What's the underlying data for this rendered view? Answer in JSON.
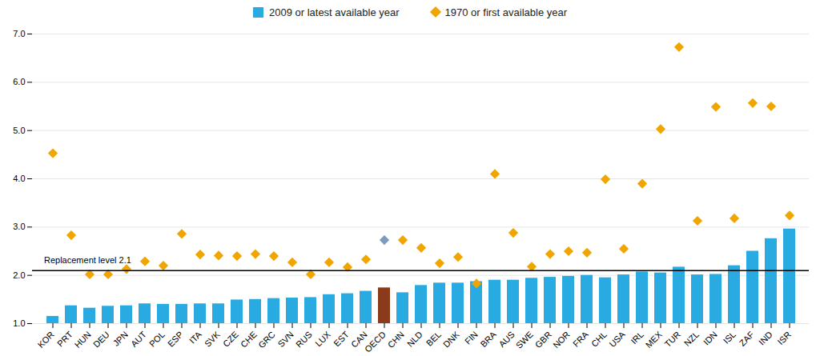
{
  "chart_data": {
    "type": "bar",
    "categories": [
      "KOR",
      "PRT",
      "HUN",
      "DEU",
      "JPN",
      "AUT",
      "POL",
      "ESP",
      "ITA",
      "SVK",
      "CZE",
      "CHE",
      "GRC",
      "SVN",
      "RUS",
      "LUX",
      "EST",
      "CAN",
      "OECD",
      "CHN",
      "NLD",
      "BEL",
      "DNK",
      "FIN",
      "BRA",
      "AUS",
      "SWE",
      "GBR",
      "NOR",
      "FRA",
      "CHL",
      "USA",
      "IRL",
      "MEX",
      "TUR",
      "NZL",
      "IDN",
      "ISL",
      "ZAF",
      "IND",
      "ISR"
    ],
    "series": [
      {
        "name": "2009 or latest available year",
        "type": "bar",
        "color": "#29ABE2",
        "colors": [
          "#29ABE2",
          "#29ABE2",
          "#29ABE2",
          "#29ABE2",
          "#29ABE2",
          "#29ABE2",
          "#29ABE2",
          "#29ABE2",
          "#29ABE2",
          "#29ABE2",
          "#29ABE2",
          "#29ABE2",
          "#29ABE2",
          "#29ABE2",
          "#29ABE2",
          "#29ABE2",
          "#29ABE2",
          "#29ABE2",
          "#8B3A1A",
          "#29ABE2",
          "#29ABE2",
          "#29ABE2",
          "#29ABE2",
          "#29ABE2",
          "#29ABE2",
          "#29ABE2",
          "#29ABE2",
          "#29ABE2",
          "#29ABE2",
          "#29ABE2",
          "#29ABE2",
          "#29ABE2",
          "#29ABE2",
          "#29ABE2",
          "#29ABE2",
          "#29ABE2",
          "#29ABE2",
          "#29ABE2",
          "#29ABE2",
          "#29ABE2",
          "#29ABE2"
        ],
        "values": [
          1.15,
          1.37,
          1.32,
          1.36,
          1.37,
          1.41,
          1.4,
          1.4,
          1.41,
          1.41,
          1.49,
          1.5,
          1.52,
          1.53,
          1.54,
          1.6,
          1.62,
          1.67,
          1.74,
          1.64,
          1.79,
          1.84,
          1.84,
          1.87,
          1.9,
          1.9,
          1.94,
          1.96,
          1.98,
          2.0,
          1.95,
          2.01,
          2.07,
          2.05,
          2.17,
          2.01,
          2.02,
          2.2,
          2.5,
          2.76,
          2.96
        ]
      },
      {
        "name": "1970 or first available year",
        "type": "scatter",
        "marker": "diamond",
        "color": "#F0A500",
        "colors": [
          "#F0A500",
          "#F0A500",
          "#F0A500",
          "#F0A500",
          "#F0A500",
          "#F0A500",
          "#F0A500",
          "#F0A500",
          "#F0A500",
          "#F0A500",
          "#F0A500",
          "#F0A500",
          "#F0A500",
          "#F0A500",
          "#F0A500",
          "#F0A500",
          "#F0A500",
          "#F0A500",
          "#7B9BBF",
          "#F0A500",
          "#F0A500",
          "#F0A500",
          "#F0A500",
          "#F0A500",
          "#F0A500",
          "#F0A500",
          "#F0A500",
          "#F0A500",
          "#F0A500",
          "#F0A500",
          "#F0A500",
          "#F0A500",
          "#F0A500",
          "#F0A500",
          "#F0A500",
          "#F0A500",
          "#F0A500",
          "#F0A500",
          "#F0A500",
          "#F0A500",
          "#F0A500"
        ],
        "values": [
          4.53,
          2.83,
          2.02,
          2.02,
          2.13,
          2.29,
          2.2,
          2.86,
          2.43,
          2.41,
          2.4,
          2.44,
          2.4,
          2.27,
          2.02,
          2.27,
          2.17,
          2.33,
          2.73,
          2.73,
          2.57,
          2.25,
          2.38,
          1.83,
          4.1,
          2.88,
          2.18,
          2.44,
          2.5,
          2.47,
          3.99,
          2.55,
          3.9,
          5.03,
          6.73,
          3.13,
          5.49,
          3.18,
          5.57,
          5.5,
          3.24
        ]
      }
    ],
    "annotations": [
      {
        "text": "Replacement level 2.1",
        "y": 2.1
      }
    ],
    "ylim": [
      1,
      7
    ],
    "yticks": [
      1,
      2,
      3,
      4,
      5,
      6,
      7
    ],
    "grid": true,
    "legend": "top"
  }
}
